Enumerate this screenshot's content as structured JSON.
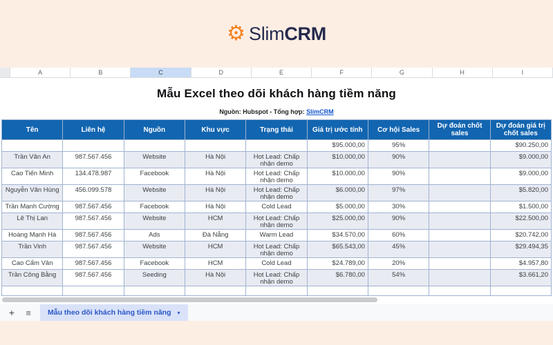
{
  "logo": {
    "brand_slim": "Slim",
    "brand_crm": "CRM",
    "gear_glyph": "⚙",
    "gear_color": "#f58220",
    "text_color": "#252a4d"
  },
  "sheet": {
    "column_letters": [
      "A",
      "B",
      "C",
      "D",
      "E",
      "F",
      "G",
      "H",
      "I"
    ],
    "highlighted_column": "C",
    "title": "Mẫu Excel theo dõi khách hàng tiềm năng",
    "subtitle_prefix": "Nguồn: Hubspot - Tổng hợp: ",
    "subtitle_link": "SlimCRM"
  },
  "table": {
    "headers": [
      "Tên",
      "Liên hệ",
      "Nguồn",
      "Khu vực",
      "Trạng thái",
      "Giá trị ước tính",
      "Cơ hội Sales",
      "Dự đoán chốt sales",
      "Dự đoán giá trị chốt sales"
    ],
    "rows": [
      [
        "",
        "",
        "",
        "",
        "",
        "$95.000,00",
        "95%",
        "",
        "$90.250,00"
      ],
      [
        "Trần Văn An",
        "987.567.456",
        "Website",
        "Hà Nội",
        "Hot Lead: Chấp nhận demo",
        "$10.000,00",
        "90%",
        "",
        "$9.000,00"
      ],
      [
        "Cao Tiến Minh",
        "134.478.987",
        "Facebook",
        "Hà Nội",
        "Hot Lead: Chấp nhận demo",
        "$10.000,00",
        "90%",
        "",
        "$9.000,00"
      ],
      [
        "Nguyễn Văn Hùng",
        "456.099.578",
        "Website",
        "Hà Nội",
        "Hot Lead: Chấp nhận demo",
        "$6.000,00",
        "97%",
        "",
        "$5.820,00"
      ],
      [
        "Trần Mạnh Cường",
        "987.567.456",
        "Facebook",
        "Hà Nội",
        "Cold Lead",
        "$5.000,00",
        "30%",
        "",
        "$1.500,00"
      ],
      [
        "Lê Thị Lan",
        "987.567.456",
        "Website",
        "HCM",
        "Hot Lead: Chấp nhận demo",
        "$25.000,00",
        "90%",
        "",
        "$22.500,00"
      ],
      [
        "Hoàng Mạnh Hà",
        "987.567.456",
        "Ads",
        "Đà Nẵng",
        "Warm Lead",
        "$34.570,00",
        "60%",
        "",
        "$20.742,00"
      ],
      [
        "Trần Vinh",
        "987.567.456",
        "Website",
        "HCM",
        "Hot Lead: Chấp nhận demo",
        "$65.543,00",
        "45%",
        "",
        "$29.494,35"
      ],
      [
        "Cao Cẩm Vân",
        "987.567.456",
        "Facebook",
        "HCM",
        "Cold Lead",
        "$24.789,00",
        "20%",
        "",
        "$4.957,80"
      ],
      [
        "Trần Công Bằng",
        "987.567.456",
        "Seeding",
        "Hà Nội",
        "Hot Lead: Chấp nhận demo",
        "$6.780,00",
        "54%",
        "",
        "$3.661,20"
      ]
    ]
  },
  "tabbar": {
    "add_label": "+",
    "menu_glyph": "≡",
    "tab_label": "Mẫu theo dõi khách hàng tiềm năng",
    "dropdown_glyph": "▾"
  },
  "colors": {
    "banner_peach": "#fdeee4",
    "header_blue": "#1265b0",
    "band_row": "#e9ebf3",
    "grid_border": "#9fb3d1",
    "column_highlight": "#c9dcf6",
    "link_blue": "#1155cc",
    "tab_bg": "#d9e2f8",
    "tab_text": "#2a56c6"
  }
}
